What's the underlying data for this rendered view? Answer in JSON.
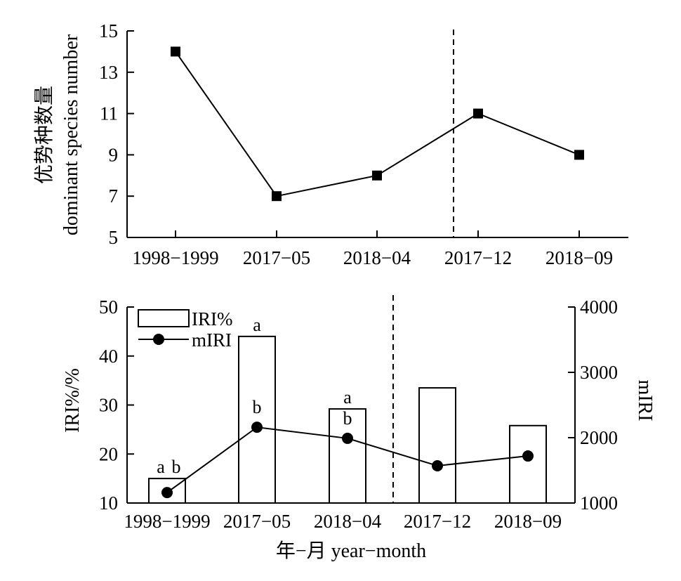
{
  "chart_data": [
    {
      "type": "line",
      "categories": [
        "1998−1999",
        "2017−05",
        "2018−04",
        "2017−12",
        "2018−09"
      ],
      "values": [
        14,
        7,
        8,
        11,
        9
      ],
      "ylabel_cn": "优势种数量",
      "ylabel_en": "dominant species number",
      "ylim": [
        5,
        15
      ],
      "yticks": [
        "5",
        "7",
        "9",
        "11",
        "13",
        "15"
      ],
      "divider_after_category": "2018−04",
      "marker": "square",
      "grid": false
    },
    {
      "type": "bar",
      "categories": [
        "1998−1999",
        "2017−05",
        "2018−04",
        "2017−12",
        "2018−09"
      ],
      "series": [
        {
          "name": "IRI%",
          "type": "bar",
          "axis": "left",
          "values": [
            15,
            44,
            29.2,
            33.5,
            25.8
          ]
        },
        {
          "name": "mIRI",
          "type": "line",
          "axis": "right",
          "values": [
            1160,
            2160,
            1990,
            1570,
            1720
          ]
        }
      ],
      "significance": {
        "IRI%": [
          "a",
          "a",
          "a",
          "",
          ""
        ],
        "mIRI": [
          "b",
          "b",
          "b",
          "",
          ""
        ]
      },
      "ylabel_left": "IRI%/%",
      "ylabel_right": "mIRI",
      "xlabel": "年−月 year−month",
      "ylim_left": [
        10,
        50
      ],
      "yticks_left": [
        "10",
        "20",
        "30",
        "40",
        "50"
      ],
      "ylim_right": [
        1000,
        4000
      ],
      "yticks_right": [
        "1000",
        "2000",
        "3000",
        "4000"
      ],
      "legend": [
        "IRI%",
        "mIRI"
      ],
      "legend_position": "top-left",
      "divider_after_category": "2018−04",
      "grid": false
    }
  ]
}
